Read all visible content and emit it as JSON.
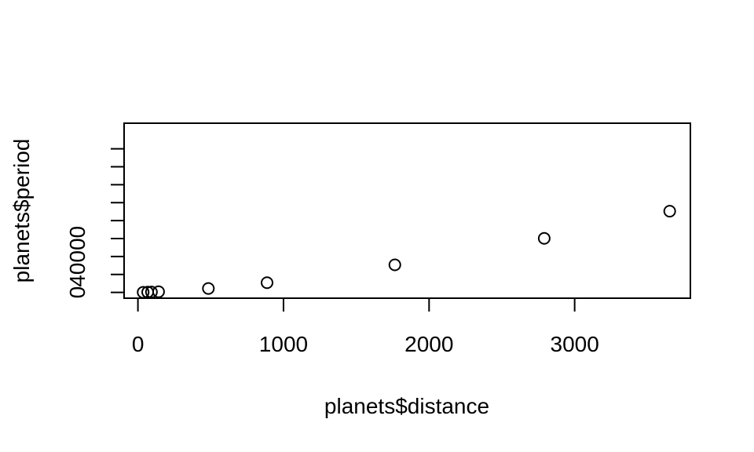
{
  "chart_data": {
    "type": "scatter",
    "title": "",
    "xlabel": "planets$distance",
    "ylabel": "planets$period",
    "xlim": [
      -95,
      3795
    ],
    "ylim": [
      -6500,
      188500
    ],
    "x_ticks": [
      0,
      1000,
      2000,
      3000
    ],
    "x_tick_labels": [
      "0",
      "1000",
      "2000",
      "3000"
    ],
    "y_ticks": [
      0,
      20000,
      40000,
      60000,
      80000,
      100000,
      120000,
      140000,
      160000
    ],
    "y_tick_labels": [
      "0",
      "",
      "40000",
      "",
      "",
      "",
      "",
      "",
      ""
    ],
    "grid": false,
    "legend": "none",
    "marker": "open-circle",
    "color": "#000000",
    "series": [
      {
        "x": [
          36,
          67,
          93,
          142,
          484,
          887,
          1765,
          2791,
          3653
        ],
        "y": [
          88,
          225,
          365,
          687,
          4333,
          10759,
          30685,
          60189,
          90465
        ]
      }
    ]
  }
}
